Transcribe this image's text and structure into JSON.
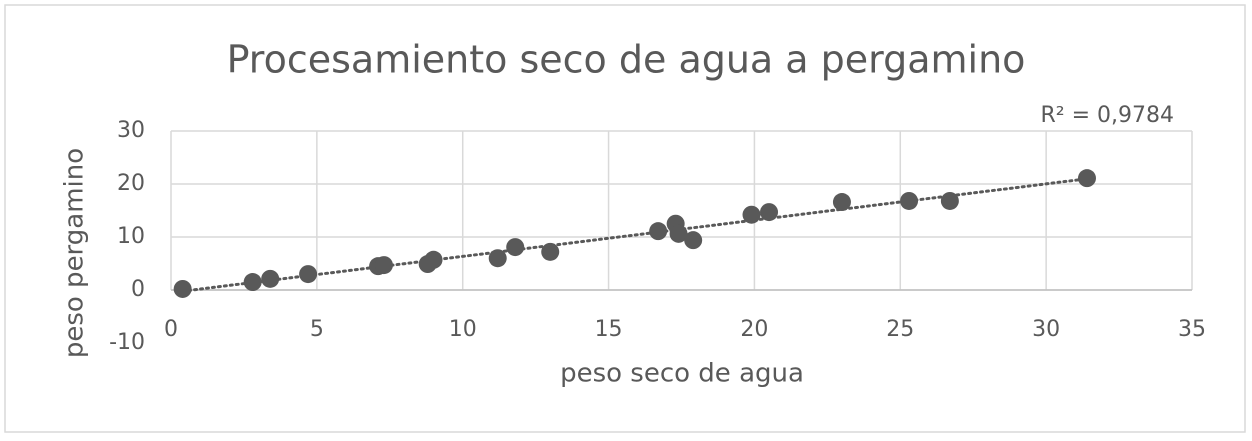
{
  "chart_data": {
    "type": "scatter",
    "title": "Procesamiento seco de agua a pergamino",
    "x_label": "peso seco de agua",
    "y_label": "peso pergamino",
    "annotation": "R² = 0,9784",
    "trendline": true,
    "color": "#595959",
    "x": [
      0.4,
      2.8,
      3.4,
      4.7,
      7.1,
      7.3,
      8.8,
      9.0,
      11.2,
      11.8,
      13.0,
      16.7,
      17.3,
      17.4,
      17.9,
      19.9,
      20.5,
      23.0,
      25.3,
      26.7,
      31.4
    ],
    "values": [
      0.2,
      1.5,
      2.1,
      3.0,
      4.5,
      4.7,
      4.9,
      5.7,
      6.0,
      8.1,
      7.2,
      11.1,
      12.5,
      10.6,
      9.4,
      14.2,
      14.7,
      16.6,
      16.8,
      16.8,
      21.1
    ],
    "xlim": [
      0,
      35
    ],
    "xticks": [
      0,
      5,
      10,
      15,
      20,
      25,
      30,
      35
    ],
    "ylim": [
      -10,
      30
    ],
    "yticks": [
      -10,
      0,
      10,
      20,
      30
    ],
    "grid": true
  }
}
